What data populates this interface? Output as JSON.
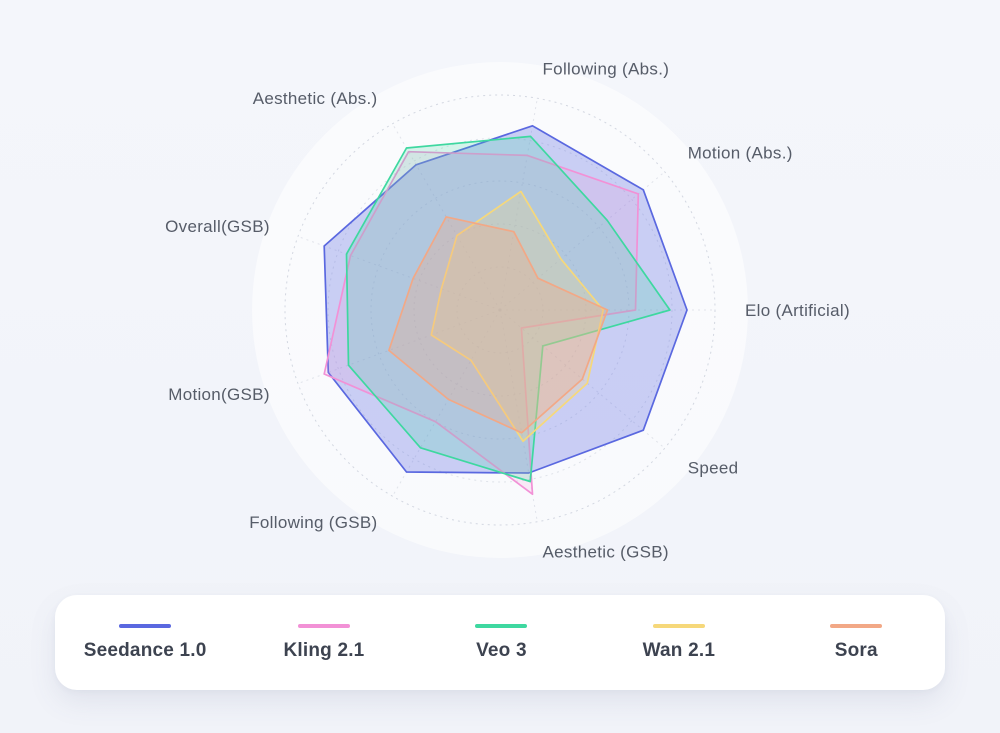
{
  "chart_data": {
    "type": "radar",
    "title": "",
    "axes": [
      "Following (Abs.)",
      "Motion  (Abs.)",
      "Elo (Artificial)",
      "Speed",
      "Aesthetic (GSB)",
      "Following (GSB)",
      "Motion(GSB)",
      "Overall(GSB)",
      "Aesthetic (Abs.)"
    ],
    "scale": [
      0,
      100
    ],
    "ring_count": 5,
    "grid": true,
    "legend_position": "bottom",
    "series": [
      {
        "name": "Seedance 1.0",
        "color": "#5a68e0",
        "fill_opacity": 0.3,
        "values": [
          87,
          87,
          87,
          87,
          77,
          87,
          85,
          87,
          78
        ]
      },
      {
        "name": "Kling 2.1",
        "color": "#f291d6",
        "fill_opacity": 0.16,
        "values": [
          73,
          84,
          63,
          13,
          87,
          60,
          87,
          74,
          85
        ]
      },
      {
        "name": "Veo 3",
        "color": "#3ed8a0",
        "fill_opacity": 0.2,
        "values": [
          82,
          65,
          79,
          26,
          81,
          74,
          75,
          76,
          87
        ]
      },
      {
        "name": "Wan 2.1",
        "color": "#f6d87a",
        "fill_opacity": 0.25,
        "values": [
          56,
          37,
          48,
          53,
          62,
          27,
          34,
          29,
          40
        ]
      },
      {
        "name": "Sora",
        "color": "#f2a886",
        "fill_opacity": 0.3,
        "values": [
          37,
          23,
          50,
          50,
          58,
          48,
          55,
          43,
          50
        ]
      }
    ]
  },
  "legend": {
    "items": [
      "Seedance 1.0",
      "Kling 2.1",
      "Veo 3",
      "Wan 2.1",
      "Sora"
    ]
  },
  "colors": {
    "background": "#f3f5fa",
    "disc": "#ffffff",
    "grid": "#c9ced9",
    "axis_label": "#565c68",
    "legend_text": "#3d4350"
  }
}
